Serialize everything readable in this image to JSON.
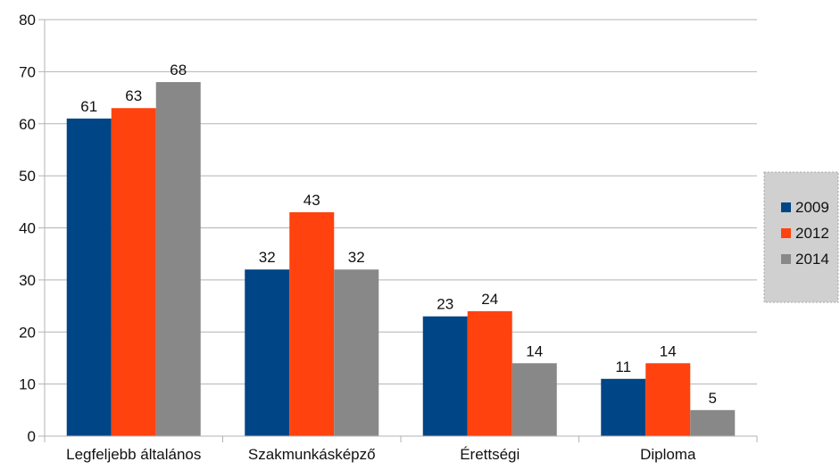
{
  "chart_data": {
    "type": "bar",
    "categories": [
      "Legfeljebb általános",
      "Szakmunkásképző",
      "Érettségi",
      "Diploma"
    ],
    "series": [
      {
        "name": "2009",
        "color": "#004586",
        "values": [
          61,
          32,
          23,
          11
        ]
      },
      {
        "name": "2012",
        "color": "#ff420e",
        "values": [
          63,
          43,
          24,
          14
        ]
      },
      {
        "name": "2014",
        "color": "#888888",
        "values": [
          68,
          32,
          14,
          5
        ]
      }
    ],
    "ylim": [
      0,
      80
    ],
    "yticks": [
      0,
      10,
      20,
      30,
      40,
      50,
      60,
      70,
      80
    ],
    "grid": true,
    "legend": "right"
  }
}
